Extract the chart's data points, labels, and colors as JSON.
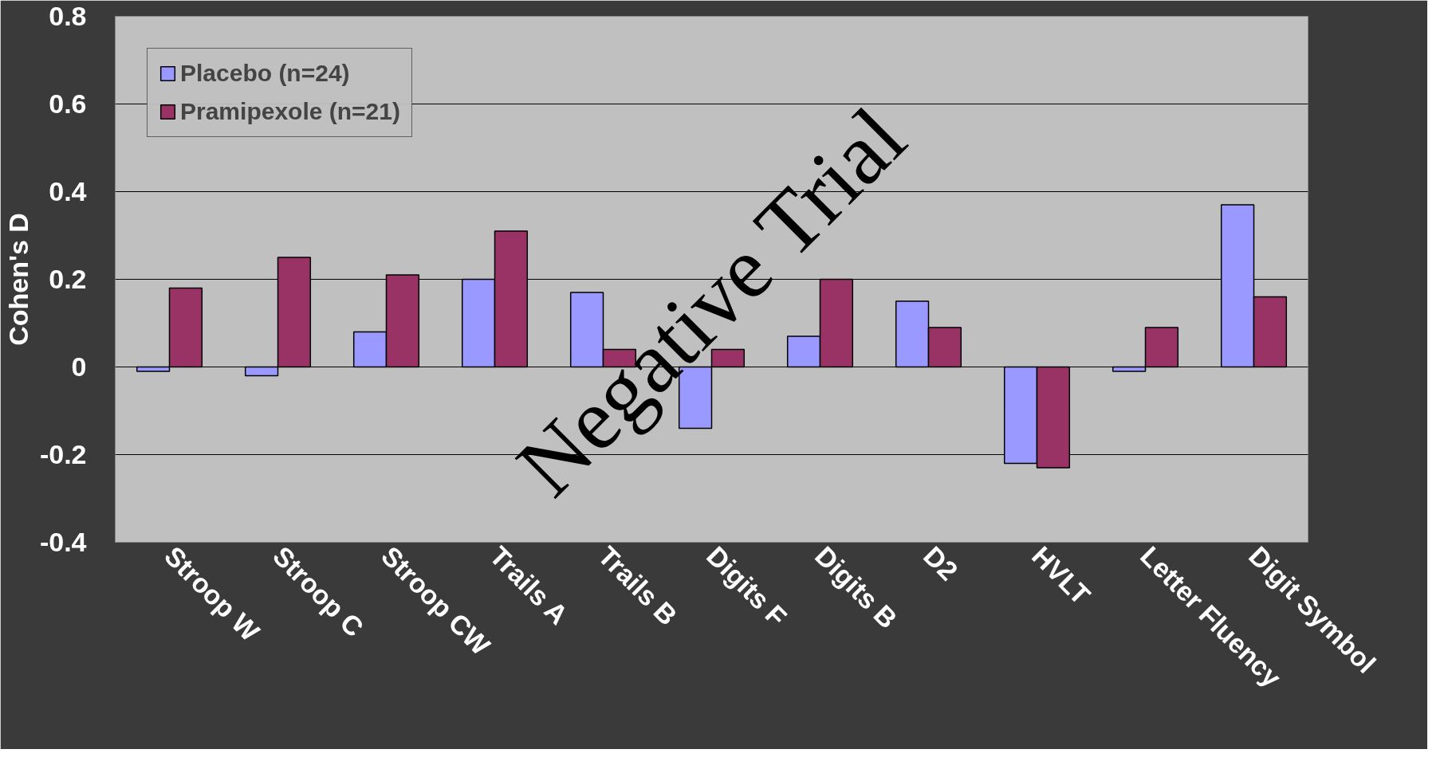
{
  "chart_data": {
    "type": "bar",
    "ylabel": "Cohen's D",
    "categories": [
      "Stroop W",
      "Stroop C",
      "Stroop CW",
      "Trails A",
      "Trails B",
      "Digits F",
      "Digits B",
      "D2",
      "HVLT",
      "Letter Fluency",
      "Digit Symbol"
    ],
    "series": [
      {
        "name": "Placebo (n=24)",
        "color": "#9999ff",
        "values": [
          -0.01,
          -0.02,
          0.08,
          0.2,
          0.17,
          -0.14,
          0.07,
          0.15,
          -0.22,
          -0.01,
          0.37
        ]
      },
      {
        "name": "Pramipexole (n=21)",
        "color": "#993366",
        "values": [
          0.18,
          0.25,
          0.21,
          0.31,
          0.04,
          0.04,
          0.2,
          0.09,
          -0.23,
          0.09,
          0.16
        ]
      }
    ],
    "ylim": [
      -0.4,
      0.8
    ],
    "yticks": [
      -0.4,
      -0.2,
      0,
      0.2,
      0.4,
      0.6,
      0.8
    ],
    "grid": "y",
    "legend": "top left",
    "annotations": [
      "Negative Trial"
    ]
  }
}
